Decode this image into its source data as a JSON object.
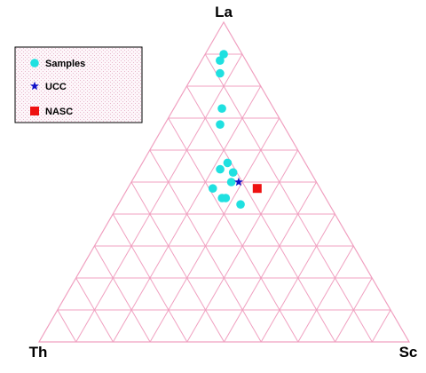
{
  "chart_data": {
    "type": "scatter",
    "subtype": "ternary",
    "apex_labels": {
      "top": "La",
      "bottom_left": "Th",
      "bottom_right": "Sc"
    },
    "components": [
      "La",
      "Th",
      "Sc"
    ],
    "grid": true,
    "grid_divisions": 10,
    "grid_color": "#f0a0c0",
    "legend_placement": "top-left",
    "series": [
      {
        "name": "Samples",
        "marker": "circle",
        "color": "#1fe0e0",
        "points": [
          {
            "La": 0.9,
            "Th": 0.05,
            "Sc": 0.05
          },
          {
            "La": 0.88,
            "Th": 0.07,
            "Sc": 0.05
          },
          {
            "La": 0.84,
            "Th": 0.09,
            "Sc": 0.07
          },
          {
            "La": 0.73,
            "Th": 0.14,
            "Sc": 0.13
          },
          {
            "La": 0.68,
            "Th": 0.17,
            "Sc": 0.15
          },
          {
            "La": 0.56,
            "Th": 0.21,
            "Sc": 0.23
          },
          {
            "La": 0.54,
            "Th": 0.24,
            "Sc": 0.22
          },
          {
            "La": 0.53,
            "Th": 0.21,
            "Sc": 0.26
          },
          {
            "La": 0.5,
            "Th": 0.23,
            "Sc": 0.27
          },
          {
            "La": 0.48,
            "Th": 0.29,
            "Sc": 0.23
          },
          {
            "La": 0.45,
            "Th": 0.28,
            "Sc": 0.27
          },
          {
            "La": 0.45,
            "Th": 0.27,
            "Sc": 0.28
          },
          {
            "La": 0.43,
            "Th": 0.24,
            "Sc": 0.33
          }
        ]
      },
      {
        "name": "UCC",
        "marker": "star",
        "color": "#1010c8",
        "points": [
          {
            "La": 0.5,
            "Th": 0.21,
            "Sc": 0.29
          }
        ]
      },
      {
        "name": "NASC",
        "marker": "square",
        "color": "#ee1111",
        "points": [
          {
            "La": 0.48,
            "Th": 0.17,
            "Sc": 0.35
          }
        ]
      }
    ]
  }
}
